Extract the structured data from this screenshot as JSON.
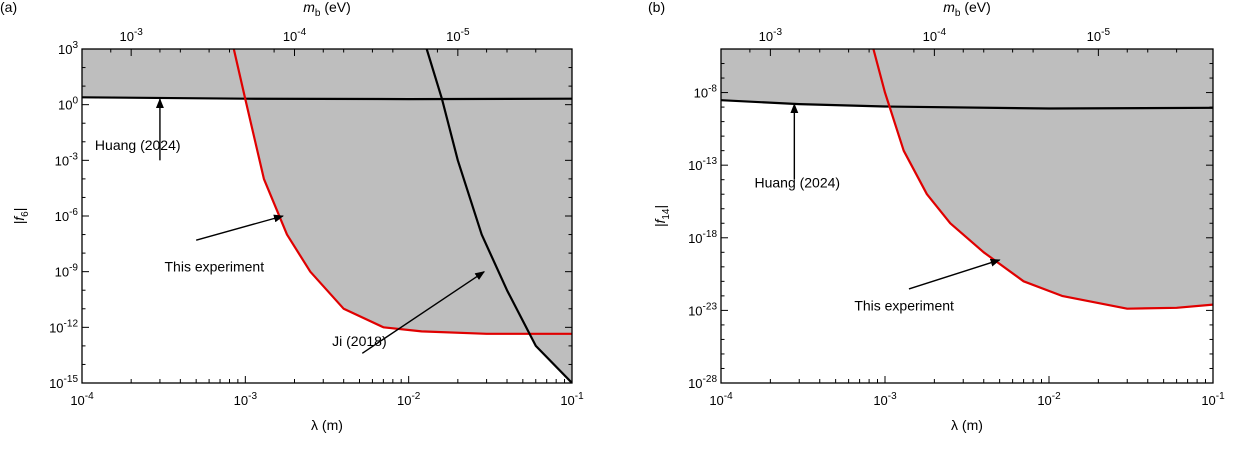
{
  "chart_data": [
    {
      "type": "line",
      "panel_label": "(a)",
      "xlabel": "λ (m)",
      "top_xlabel_main": "m",
      "top_xlabel_sub": "b",
      "top_xlabel_unit": " (eV)",
      "ylabel_main": "|f",
      "ylabel_sub": "6",
      "ylabel_end": "|",
      "x_scale": "log",
      "y_scale": "log",
      "xlim": [
        0.0001,
        0.1
      ],
      "ylim": [
        1e-15,
        1000
      ],
      "x_ticks": [
        {
          "value": 0.0001,
          "base": "10",
          "exp": "-4"
        },
        {
          "value": 0.001,
          "base": "10",
          "exp": "-3"
        },
        {
          "value": 0.01,
          "base": "10",
          "exp": "-2"
        },
        {
          "value": 0.1,
          "base": "10",
          "exp": "-1"
        }
      ],
      "y_ticks": [
        {
          "value": 1e-15,
          "base": "10",
          "exp": "-15"
        },
        {
          "value": 1e-12,
          "base": "10",
          "exp": "-12"
        },
        {
          "value": 1e-09,
          "base": "10",
          "exp": "-9"
        },
        {
          "value": 1e-06,
          "base": "10",
          "exp": "-6"
        },
        {
          "value": 0.001,
          "base": "10",
          "exp": "-3"
        },
        {
          "value": 1,
          "base": "10",
          "exp": "0"
        },
        {
          "value": 1000,
          "base": "10",
          "exp": "3"
        }
      ],
      "top_ticks": [
        {
          "lambda": 0.0002,
          "base": "10",
          "exp": "-3"
        },
        {
          "lambda": 0.002,
          "base": "10",
          "exp": "-4"
        },
        {
          "lambda": 0.02,
          "base": "10",
          "exp": "-5"
        }
      ],
      "shaded_region_color": "#bebebe",
      "series": [
        {
          "key": "huang",
          "color": "#000000",
          "points": [
            [
              0.0001,
              2.5
            ],
            [
              0.001,
              2.1
            ],
            [
              0.01,
              2.0
            ],
            [
              0.1,
              2.1
            ]
          ]
        },
        {
          "key": "this",
          "color": "#e00000",
          "points": [
            [
              0.00085,
              1000
            ],
            [
              0.001,
              2
            ],
            [
              0.0013,
              0.0001
            ],
            [
              0.0018,
              1e-07
            ],
            [
              0.0025,
              1e-09
            ],
            [
              0.004,
              1e-11
            ],
            [
              0.007,
              1e-12
            ],
            [
              0.012,
              6e-13
            ],
            [
              0.03,
              4.5e-13
            ],
            [
              0.1,
              4.5e-13
            ]
          ]
        },
        {
          "key": "ji",
          "color": "#000000",
          "points": [
            [
              0.0129,
              1000
            ],
            [
              0.016,
              2
            ],
            [
              0.02,
              0.001
            ],
            [
              0.028,
              1e-07
            ],
            [
              0.04,
              1e-10
            ],
            [
              0.06,
              1e-13
            ],
            [
              0.1,
              1e-15
            ]
          ]
        }
      ],
      "annotations": [
        {
          "text": "Huang (2024)",
          "text_x": 0.00012,
          "text_y": 0.0035,
          "arrow_from": [
            0.0003,
            0.001
          ],
          "arrow_to": [
            0.0003,
            2.0
          ]
        },
        {
          "text": "This experiment",
          "text_x": 0.00032,
          "text_y": 1e-09,
          "arrow_from": [
            0.0005,
            5e-08
          ],
          "arrow_to": [
            0.0017,
            1e-06
          ]
        },
        {
          "text": "Ji (2018)",
          "text_x": 0.0034,
          "text_y": 1e-13,
          "arrow_from": [
            0.0052,
            4e-14
          ],
          "arrow_to": [
            0.029,
            1e-09
          ]
        }
      ]
    },
    {
      "type": "line",
      "panel_label": "(b)",
      "xlabel": "λ (m)",
      "top_xlabel_main": "m",
      "top_xlabel_sub": "b",
      "top_xlabel_unit": " (eV)",
      "ylabel_main": "|f",
      "ylabel_sub": "14",
      "ylabel_end": "|",
      "x_scale": "log",
      "y_scale": "log",
      "xlim": [
        0.0001,
        0.1
      ],
      "ylim": [
        1e-28,
        1e-05
      ],
      "x_ticks": [
        {
          "value": 0.0001,
          "base": "10",
          "exp": "-4"
        },
        {
          "value": 0.001,
          "base": "10",
          "exp": "-3"
        },
        {
          "value": 0.01,
          "base": "10",
          "exp": "-2"
        },
        {
          "value": 0.1,
          "base": "10",
          "exp": "-1"
        }
      ],
      "y_ticks": [
        {
          "value": 1e-28,
          "base": "10",
          "exp": "-28"
        },
        {
          "value": 1e-23,
          "base": "10",
          "exp": "-23"
        },
        {
          "value": 1e-18,
          "base": "10",
          "exp": "-18"
        },
        {
          "value": 1e-13,
          "base": "10",
          "exp": "-13"
        },
        {
          "value": 1e-08,
          "base": "10",
          "exp": "-8"
        }
      ],
      "top_ticks": [
        {
          "lambda": 0.0002,
          "base": "10",
          "exp": "-3"
        },
        {
          "lambda": 0.002,
          "base": "10",
          "exp": "-4"
        },
        {
          "lambda": 0.02,
          "base": "10",
          "exp": "-5"
        }
      ],
      "shaded_region_color": "#bebebe",
      "series": [
        {
          "key": "huang",
          "color": "#000000",
          "points": [
            [
              0.0001,
              3e-09
            ],
            [
              0.0003,
              1.6e-09
            ],
            [
              0.001,
              1.1e-09
            ],
            [
              0.01,
              8e-10
            ],
            [
              0.1,
              9e-10
            ]
          ]
        },
        {
          "key": "this",
          "color": "#e00000",
          "points": [
            [
              0.00085,
              1e-05
            ],
            [
              0.001,
              1e-08
            ],
            [
              0.0013,
              1e-12
            ],
            [
              0.0018,
              1e-15
            ],
            [
              0.0025,
              1e-17
            ],
            [
              0.004,
              1e-19
            ],
            [
              0.007,
              1e-21
            ],
            [
              0.012,
              1e-22
            ],
            [
              0.03,
              1.3e-23
            ],
            [
              0.06,
              1.5e-23
            ],
            [
              0.1,
              2.5e-23
            ]
          ]
        }
      ],
      "annotations": [
        {
          "text": "Huang (2024)",
          "text_x": 0.00016,
          "text_y": 3e-15,
          "arrow_from": [
            0.00028,
            1e-14
          ],
          "arrow_to": [
            0.00028,
            1.6e-09
          ]
        },
        {
          "text": "This experiment",
          "text_x": 0.00065,
          "text_y": 1e-23,
          "arrow_from": [
            0.0014,
            3e-22
          ],
          "arrow_to": [
            0.005,
            3e-20
          ]
        }
      ]
    }
  ]
}
